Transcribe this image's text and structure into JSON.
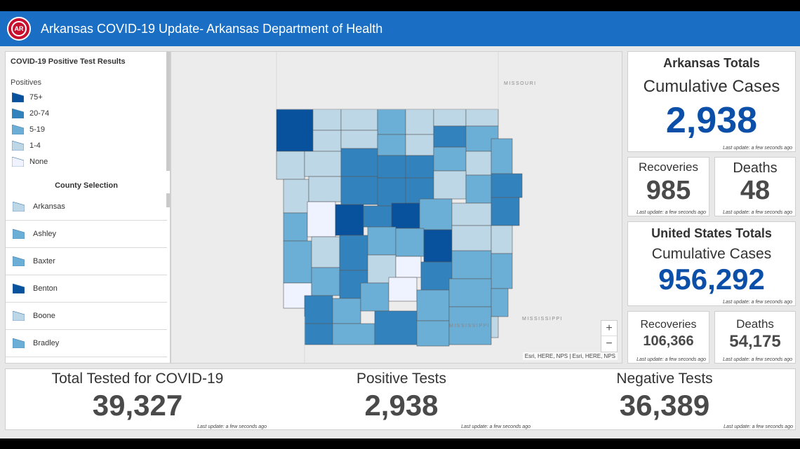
{
  "header": {
    "title": "Arkansas COVID-19 Update- Arkansas Department of Health",
    "logo_text": "AR"
  },
  "legend": {
    "title": "COVID-19 Positive Test Results",
    "subtitle": "Positives",
    "items": [
      {
        "label": "75+",
        "color": "#08519c"
      },
      {
        "label": "20-74",
        "color": "#3182bd"
      },
      {
        "label": "5-19",
        "color": "#6baed6"
      },
      {
        "label": "1-4",
        "color": "#bdd7e7"
      },
      {
        "label": "None",
        "color": "#eff3ff"
      }
    ]
  },
  "county_selection": {
    "title": "County Selection",
    "items": [
      {
        "label": "Arkansas",
        "color": "#bdd7e7"
      },
      {
        "label": "Ashley",
        "color": "#6baed6"
      },
      {
        "label": "Baxter",
        "color": "#6baed6"
      },
      {
        "label": "Benton",
        "color": "#08519c"
      },
      {
        "label": "Boone",
        "color": "#bdd7e7"
      },
      {
        "label": "Bradley",
        "color": "#6baed6"
      }
    ]
  },
  "map": {
    "labels": {
      "missouri": "MISSOURI",
      "mississippi_1": "MISSISSIPPI",
      "mississippi_2": "MISSISSIPPI"
    },
    "zoom_in": "+",
    "zoom_out": "−",
    "attribution": "Esri, HERE, NPS | Esri, HERE, NPS"
  },
  "arkansas_totals": {
    "heading": "Arkansas Totals",
    "label": "Cumulative Cases",
    "value": "2,938",
    "update": "Last update: a few seconds ago"
  },
  "arkansas_recoveries": {
    "label": "Recoveries",
    "value": "985",
    "update": "Last update: a few seconds ago"
  },
  "arkansas_deaths": {
    "label": "Deaths",
    "value": "48",
    "update": "Last update: a few seconds ago"
  },
  "us_totals": {
    "heading": "United States Totals",
    "label": "Cumulative Cases",
    "value": "956,292",
    "update": "Last update: a few seconds ago"
  },
  "us_recoveries": {
    "label": "Recoveries",
    "value": "106,366",
    "update": "Last update: a few seconds ago"
  },
  "us_deaths": {
    "label": "Deaths",
    "value": "54,175",
    "update": "Last update: a few seconds ago"
  },
  "bottom": {
    "tested": {
      "label": "Total Tested for COVID-19",
      "value": "39,327",
      "update": "Last update: a few seconds ago"
    },
    "positive": {
      "label": "Positive Tests",
      "value": "2,938",
      "update": "Last update: a few seconds ago"
    },
    "negative": {
      "label": "Negative Tests",
      "value": "36,389",
      "update": "Last update: a few seconds ago"
    }
  },
  "colors": {
    "header": "#1a6fc4",
    "accent_value": "#0b4fa8",
    "dark_value": "#4a4a4a"
  }
}
